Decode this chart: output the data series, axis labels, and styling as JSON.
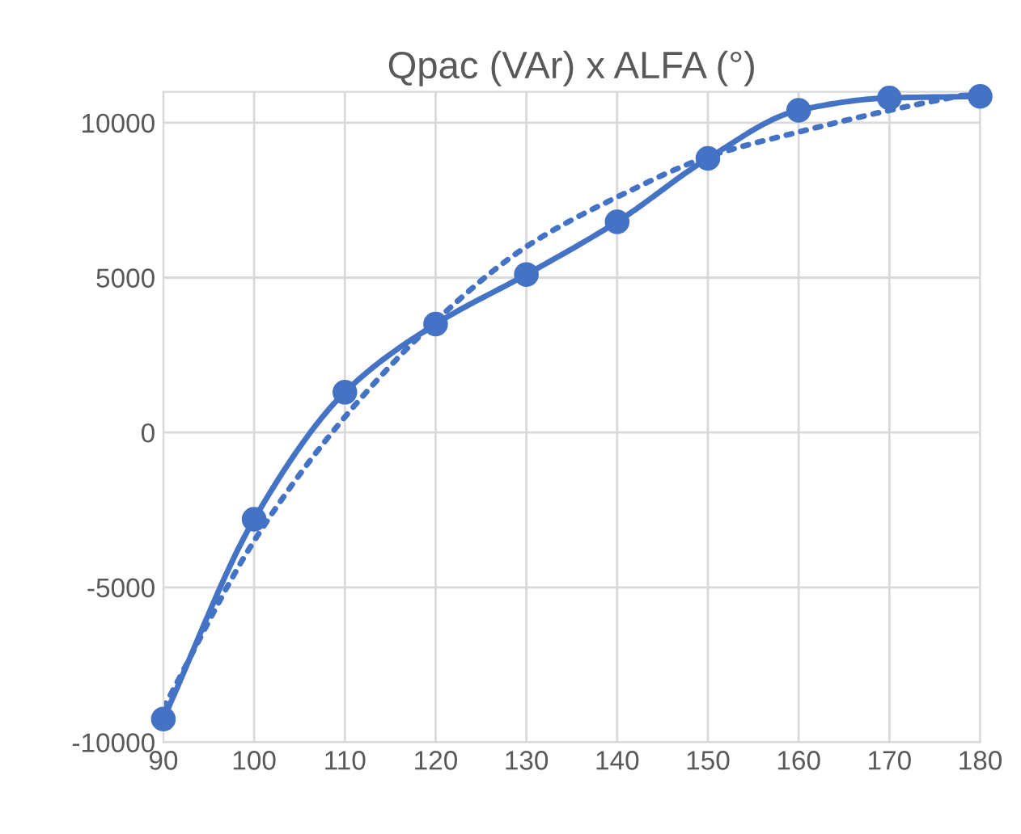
{
  "chart_data": {
    "type": "line",
    "title": "Qpac (VAr) x ALFA (°)",
    "x": [
      90,
      100,
      110,
      120,
      130,
      140,
      150,
      160,
      170,
      180
    ],
    "series": [
      {
        "color": "#4472c4",
        "marker": "circle",
        "line_style": "solid",
        "values": [
          -9250,
          -2800,
          1300,
          3500,
          5100,
          6800,
          8850,
          10400,
          10800,
          10850
        ]
      },
      {
        "color": "#4472c4",
        "marker": "none",
        "line_style": "dotted",
        "values": [
          -8900,
          -3500,
          500,
          3600,
          6000,
          7600,
          8900,
          9700,
          10400,
          11000
        ]
      }
    ],
    "xlim": [
      90,
      180
    ],
    "xticks": [
      90,
      100,
      110,
      120,
      130,
      140,
      150,
      160,
      170,
      180
    ],
    "ylim": [
      -10000,
      11000
    ],
    "yticks": [
      -10000,
      -5000,
      0,
      5000,
      10000
    ],
    "grid": true,
    "legend": false
  }
}
